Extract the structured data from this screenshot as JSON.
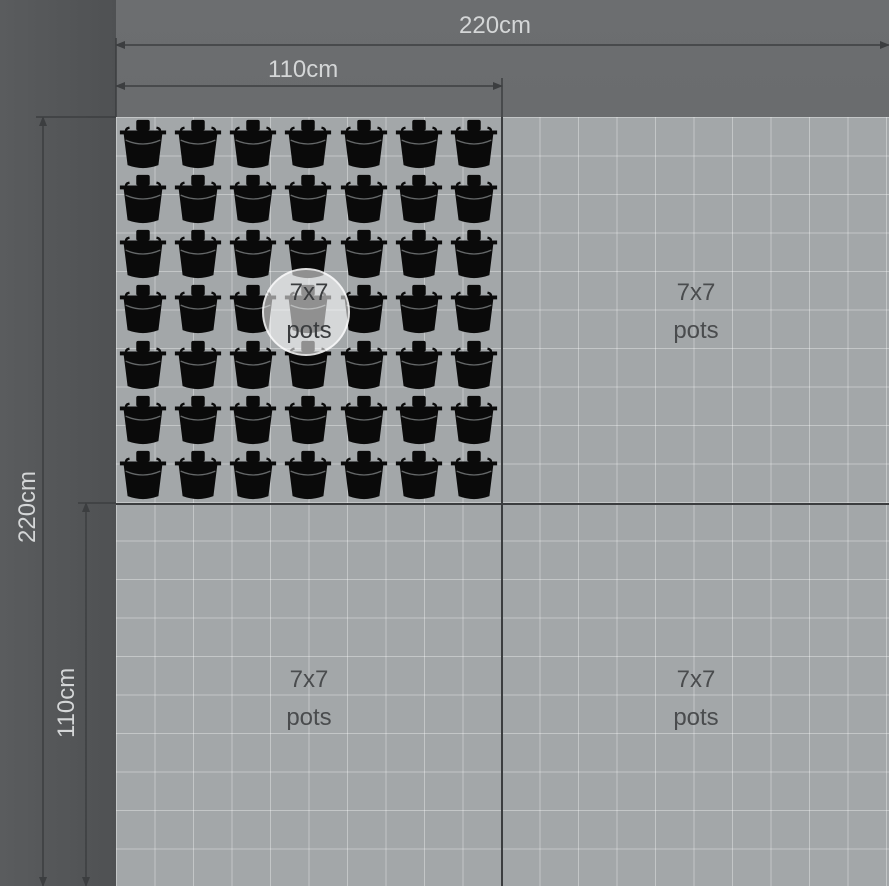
{
  "dimensions": {
    "top_total": "220cm",
    "top_half": "110cm",
    "left_total": "220cm",
    "left_half": "110cm"
  },
  "modules": [
    {
      "size": "7x7",
      "unit": "pots",
      "filled": true
    },
    {
      "size": "7x7",
      "unit": "pots",
      "filled": false
    },
    {
      "size": "7x7",
      "unit": "pots",
      "filled": false
    },
    {
      "size": "7x7",
      "unit": "pots",
      "filled": false
    }
  ],
  "pot_grid": {
    "rows": 7,
    "cols": 7
  },
  "colors": {
    "background": "#6c6e70",
    "board": "#a3a7a9",
    "pot": "#0a0a0a",
    "dimension_line": "#3c3e40"
  },
  "icons": {
    "pot": "hanging-pot-icon"
  }
}
